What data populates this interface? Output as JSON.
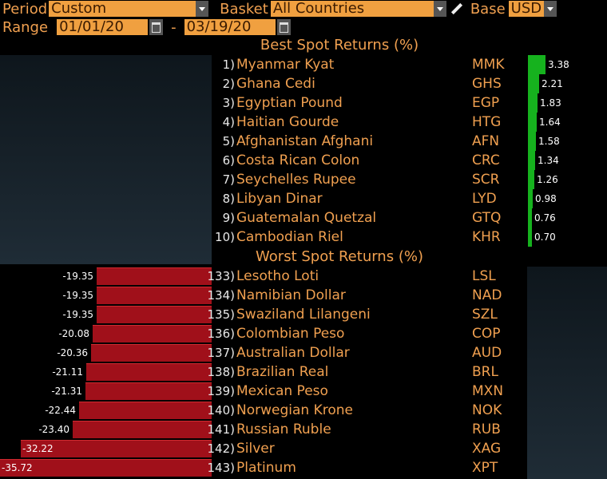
{
  "controls": {
    "period_label": "Period",
    "period_value": "Custom",
    "basket_label": "Basket",
    "basket_value": "All Countries",
    "base_label": "Base",
    "base_value": "USD",
    "range_label": "Range",
    "range_start": "01/01/20",
    "range_sep": "-",
    "range_end": "03/19/20"
  },
  "icons": {
    "dropdown": "chevron-down-icon",
    "calendar": "calendar-icon",
    "edit": "pencil-icon"
  },
  "colors": {
    "accent_orange": "#f0a040",
    "best_bar": "#16b21e",
    "worst_bar": "#a0101a",
    "background": "#000000"
  },
  "best": {
    "title": "Best Spot Returns (%)",
    "rows": [
      {
        "rank": "1)",
        "name": "Myanmar Kyat",
        "code": "MMK",
        "value": 3.38,
        "label": "3.38"
      },
      {
        "rank": "2)",
        "name": "Ghana Cedi",
        "code": "GHS",
        "value": 2.21,
        "label": "2.21"
      },
      {
        "rank": "3)",
        "name": "Egyptian Pound",
        "code": "EGP",
        "value": 1.83,
        "label": "1.83"
      },
      {
        "rank": "4)",
        "name": "Haitian Gourde",
        "code": "HTG",
        "value": 1.64,
        "label": "1.64"
      },
      {
        "rank": "5)",
        "name": "Afghanistan Afghani",
        "code": "AFN",
        "value": 1.58,
        "label": "1.58"
      },
      {
        "rank": "6)",
        "name": "Costa Rican Colon",
        "code": "CRC",
        "value": 1.34,
        "label": "1.34"
      },
      {
        "rank": "7)",
        "name": "Seychelles Rupee",
        "code": "SCR",
        "value": 1.26,
        "label": "1.26"
      },
      {
        "rank": "8)",
        "name": "Libyan Dinar",
        "code": "LYD",
        "value": 0.98,
        "label": "0.98"
      },
      {
        "rank": "9)",
        "name": "Guatemalan Quetzal",
        "code": "GTQ",
        "value": 0.76,
        "label": "0.76"
      },
      {
        "rank": "10)",
        "name": "Cambodian Riel",
        "code": "KHR",
        "value": 0.7,
        "label": "0.70"
      }
    ]
  },
  "worst": {
    "title": "Worst Spot Returns (%)",
    "rows": [
      {
        "rank": "133)",
        "name": "Lesotho Loti",
        "code": "LSL",
        "value": -19.35,
        "label": "-19.35"
      },
      {
        "rank": "134)",
        "name": "Namibian Dollar",
        "code": "NAD",
        "value": -19.35,
        "label": "-19.35"
      },
      {
        "rank": "135)",
        "name": "Swaziland Lilangeni",
        "code": "SZL",
        "value": -19.35,
        "label": "-19.35"
      },
      {
        "rank": "136)",
        "name": "Colombian Peso",
        "code": "COP",
        "value": -20.08,
        "label": "-20.08"
      },
      {
        "rank": "137)",
        "name": "Australian Dollar",
        "code": "AUD",
        "value": -20.36,
        "label": "-20.36"
      },
      {
        "rank": "138)",
        "name": "Brazilian Real",
        "code": "BRL",
        "value": -21.11,
        "label": "-21.11"
      },
      {
        "rank": "139)",
        "name": "Mexican Peso",
        "code": "MXN",
        "value": -21.31,
        "label": "-21.31"
      },
      {
        "rank": "140)",
        "name": "Norwegian Krone",
        "code": "NOK",
        "value": -22.44,
        "label": "-22.44"
      },
      {
        "rank": "141)",
        "name": "Russian Ruble",
        "code": "RUB",
        "value": -23.4,
        "label": "-23.40"
      },
      {
        "rank": "142)",
        "name": "Silver",
        "code": "XAG",
        "value": -32.22,
        "label": "-32.22"
      },
      {
        "rank": "143)",
        "name": "Platinum",
        "code": "XPT",
        "value": -35.72,
        "label": "-35.72"
      }
    ]
  }
}
